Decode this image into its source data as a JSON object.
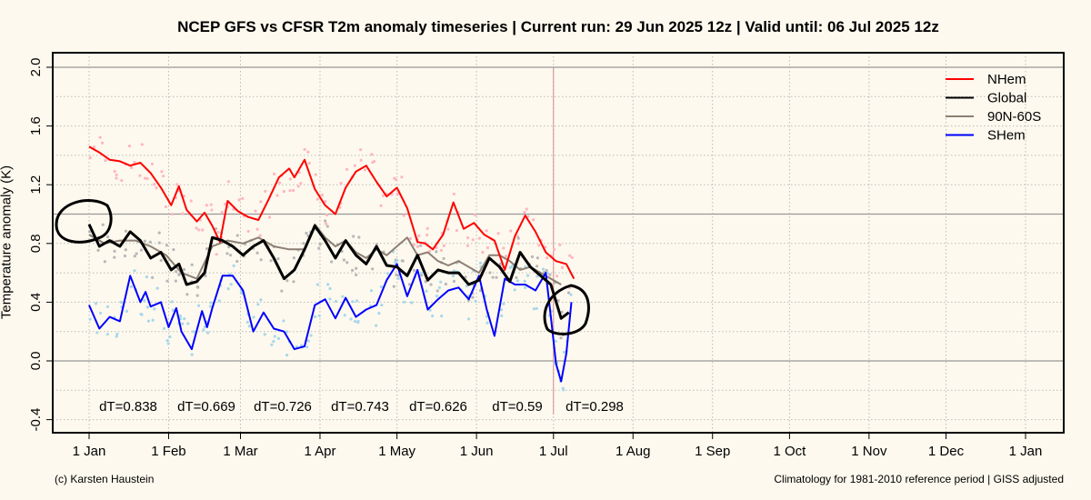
{
  "title": "NCEP GFS vs CFSR T2m anomaly timeseries | Current run: 29 Jun 2025 12z | Valid until: 06 Jul 2025 12z",
  "footer": {
    "left": "(c) Karsten Haustein",
    "right": "Climatology for 1981-2010 reference period | GISS adjusted"
  },
  "colors": {
    "background": "#fdf9ee",
    "nhem": "#ff0000",
    "global": "#000000",
    "band": "#8c7f73",
    "shem": "#0000ff",
    "nhem_dots": "#ffb6c1",
    "global_dots": "#b8b8b8",
    "shem_dots": "#a8d8ea",
    "current_run_line": "#d98c8c"
  },
  "chart_data": {
    "type": "line",
    "title": "NCEP GFS vs CFSR T2m anomaly timeseries | Current run: 29 Jun 2025 12z | Valid until: 06 Jul 2025 12z",
    "xlabel": "",
    "ylabel": "Temperature anomaly (K)",
    "ylim": [
      -0.4,
      2.0
    ],
    "yticks": [
      -0.4,
      0.0,
      0.4,
      0.8,
      1.2,
      1.6,
      2.0
    ],
    "ytick_labels": [
      "-0.4",
      "0.0",
      "0.4",
      "0.8",
      "1.2",
      "1.6",
      "2.0"
    ],
    "xticks": [
      "1 Jan",
      "1 Feb",
      "1 Mar",
      "1 Apr",
      "1 May",
      "1 Jun",
      "1 Jul",
      "1 Aug",
      "1 Sep",
      "1 Oct",
      "1 Nov",
      "1 Dec",
      "1 Jan"
    ],
    "xtick_days": [
      0,
      31,
      59,
      90,
      120,
      151,
      181,
      212,
      243,
      273,
      304,
      334,
      365
    ],
    "grid": true,
    "legend_position": "top-right",
    "legend": [
      "NHem",
      "Global",
      "90N-60S",
      "SHem"
    ],
    "current_run_day": 181,
    "reference_lines": [
      0.0,
      1.0,
      2.0
    ],
    "monthly_dT": [
      {
        "month": "Jan",
        "label": "dT=0.838"
      },
      {
        "month": "Feb",
        "label": "dT=0.669"
      },
      {
        "month": "Mar",
        "label": "dT=0.726"
      },
      {
        "month": "Apr",
        "label": "dT=0.743"
      },
      {
        "month": "May",
        "label": "dT=0.626"
      },
      {
        "month": "Jun",
        "label": "dT=0.59"
      },
      {
        "month": "Jul",
        "label": "dT=0.298"
      }
    ],
    "series": [
      {
        "name": "NHem",
        "color": "#ff0000",
        "x": [
          0,
          4,
          8,
          12,
          16,
          20,
          24,
          28,
          32,
          35,
          38,
          42,
          45,
          48,
          51,
          54,
          58,
          62,
          66,
          70,
          74,
          78,
          80,
          84,
          88,
          92,
          96,
          100,
          104,
          108,
          112,
          116,
          120,
          124,
          128,
          131,
          134,
          138,
          142,
          146,
          150,
          154,
          158,
          162,
          166,
          170,
          174,
          178,
          182,
          186,
          189
        ],
        "y": [
          1.46,
          1.42,
          1.37,
          1.36,
          1.33,
          1.35,
          1.28,
          1.18,
          1.06,
          1.19,
          1.03,
          0.95,
          1.01,
          0.92,
          0.81,
          1.09,
          1.02,
          0.98,
          0.96,
          1.1,
          1.25,
          1.31,
          1.25,
          1.37,
          1.17,
          1.06,
          1.0,
          1.18,
          1.29,
          1.33,
          1.22,
          1.12,
          1.18,
          1.04,
          0.81,
          0.8,
          0.76,
          0.86,
          1.08,
          0.9,
          0.94,
          0.86,
          0.82,
          0.62,
          0.85,
          0.99,
          0.88,
          0.74,
          0.68,
          0.66,
          0.56
        ]
      },
      {
        "name": "Global",
        "color": "#000000",
        "x": [
          0,
          4,
          8,
          12,
          16,
          20,
          24,
          28,
          32,
          35,
          38,
          42,
          45,
          48,
          52,
          56,
          60,
          64,
          68,
          72,
          76,
          80,
          84,
          88,
          92,
          96,
          100,
          104,
          108,
          112,
          116,
          120,
          124,
          128,
          132,
          136,
          140,
          144,
          148,
          152,
          156,
          160,
          164,
          168,
          172,
          176,
          180,
          184,
          187
        ],
        "y": [
          0.93,
          0.78,
          0.82,
          0.78,
          0.88,
          0.82,
          0.7,
          0.74,
          0.62,
          0.66,
          0.52,
          0.54,
          0.6,
          0.84,
          0.82,
          0.78,
          0.72,
          0.78,
          0.82,
          0.7,
          0.56,
          0.62,
          0.76,
          0.92,
          0.82,
          0.7,
          0.82,
          0.72,
          0.66,
          0.78,
          0.65,
          0.64,
          0.58,
          0.72,
          0.55,
          0.62,
          0.6,
          0.6,
          0.52,
          0.55,
          0.7,
          0.64,
          0.54,
          0.74,
          0.64,
          0.58,
          0.52,
          0.29,
          0.33
        ]
      },
      {
        "name": "90N-60S",
        "color": "#8c7f73",
        "x": [
          0,
          6,
          12,
          18,
          24,
          30,
          36,
          42,
          48,
          54,
          60,
          66,
          72,
          78,
          84,
          88,
          92,
          96,
          100,
          104,
          108,
          112,
          116,
          120,
          124,
          128,
          132,
          136,
          140,
          144,
          148,
          152,
          156,
          160,
          164,
          168,
          172,
          176,
          180,
          184
        ],
        "y": [
          0.86,
          0.8,
          0.82,
          0.82,
          0.78,
          0.72,
          0.6,
          0.56,
          0.78,
          0.82,
          0.8,
          0.84,
          0.78,
          0.76,
          0.76,
          0.93,
          0.84,
          0.78,
          0.82,
          0.74,
          0.7,
          0.76,
          0.72,
          0.78,
          0.84,
          0.72,
          0.74,
          0.68,
          0.65,
          0.68,
          0.64,
          0.6,
          0.72,
          0.72,
          0.68,
          0.62,
          0.64,
          0.6,
          0.56,
          0.52
        ]
      },
      {
        "name": "SHem",
        "color": "#0000ff",
        "x": [
          0,
          4,
          8,
          12,
          16,
          20,
          22,
          24,
          28,
          31,
          34,
          36,
          40,
          44,
          46,
          48,
          52,
          56,
          60,
          64,
          68,
          72,
          76,
          80,
          84,
          88,
          92,
          96,
          100,
          104,
          108,
          112,
          116,
          120,
          124,
          128,
          132,
          136,
          140,
          144,
          148,
          152,
          155,
          158,
          162,
          166,
          170,
          174,
          178,
          180,
          182,
          184,
          186,
          188
        ],
        "y": [
          0.38,
          0.22,
          0.3,
          0.27,
          0.58,
          0.4,
          0.47,
          0.37,
          0.4,
          0.23,
          0.36,
          0.2,
          0.08,
          0.34,
          0.23,
          0.36,
          0.58,
          0.58,
          0.48,
          0.2,
          0.33,
          0.22,
          0.2,
          0.08,
          0.1,
          0.38,
          0.42,
          0.29,
          0.43,
          0.3,
          0.35,
          0.38,
          0.55,
          0.66,
          0.44,
          0.62,
          0.35,
          0.42,
          0.48,
          0.5,
          0.42,
          0.58,
          0.35,
          0.17,
          0.56,
          0.52,
          0.52,
          0.48,
          0.6,
          0.3,
          -0.02,
          -0.14,
          0.05,
          0.4
        ]
      }
    ]
  }
}
